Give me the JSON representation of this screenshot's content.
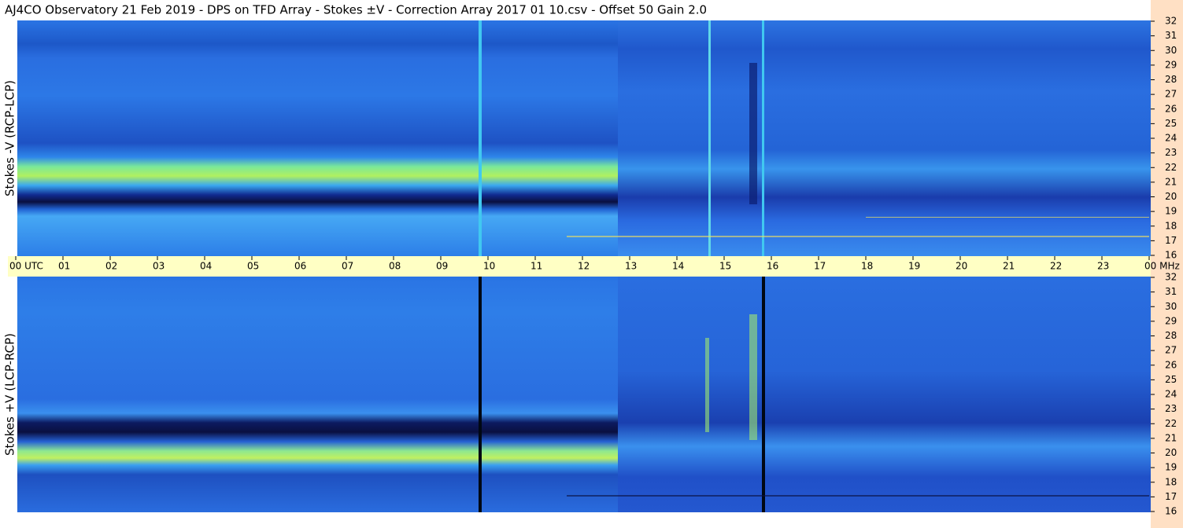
{
  "title": "AJ4CO Observatory  21 Feb 2019  -  DPS on TFD Array  -  Stokes ±V  -  Correction Array 2017 01 10.csv  -  Offset 50  Gain 2.0",
  "panels": [
    {
      "label": "Stokes -V (RCP-LCP)"
    },
    {
      "label": "Stokes +V (LCP-RCP)"
    }
  ],
  "time_axis": [
    "00  UTC",
    "01",
    "02",
    "03",
    "04",
    "05",
    "06",
    "07",
    "08",
    "09",
    "10",
    "11",
    "12",
    "13",
    "14",
    "15",
    "16",
    "17",
    "18",
    "19",
    "20",
    "21",
    "22",
    "23",
    "00 MHz"
  ],
  "freq_axis": [
    "32",
    "31",
    "30",
    "29",
    "28",
    "27",
    "26",
    "25",
    "24",
    "23",
    "22",
    "21",
    "20",
    "19",
    "18",
    "17",
    "16"
  ]
}
